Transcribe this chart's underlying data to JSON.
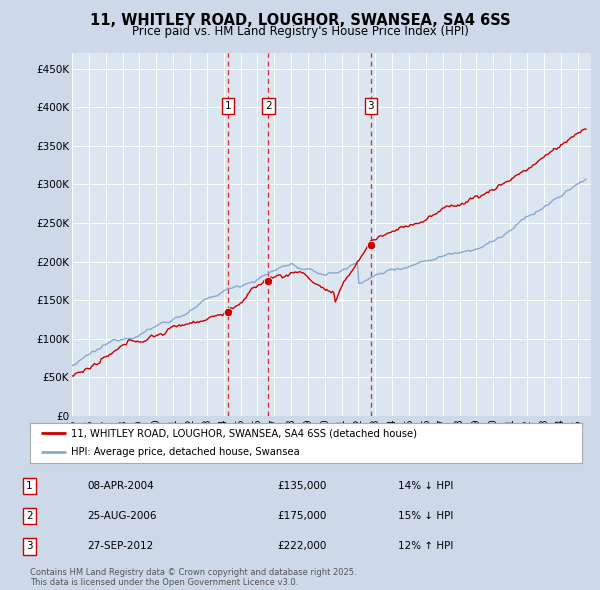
{
  "title": "11, WHITLEY ROAD, LOUGHOR, SWANSEA, SA4 6SS",
  "subtitle": "Price paid vs. HM Land Registry's House Price Index (HPI)",
  "background_color": "#cdd9e8",
  "plot_bg_color": "#dce6f1",
  "ylim": [
    0,
    470000
  ],
  "yticks": [
    0,
    50000,
    100000,
    150000,
    200000,
    250000,
    300000,
    350000,
    400000,
    450000
  ],
  "ytick_labels": [
    "£0",
    "£50K",
    "£100K",
    "£150K",
    "£200K",
    "£250K",
    "£300K",
    "£350K",
    "£400K",
    "£450K"
  ],
  "xlim_start": 1995.0,
  "xlim_end": 2025.8,
  "transactions": [
    {
      "num": 1,
      "date_num": 2004.27,
      "price": 135000,
      "date_str": "08-APR-2004",
      "amount_str": "£135,000",
      "pct": "14%",
      "dir": "↓"
    },
    {
      "num": 2,
      "date_num": 2006.65,
      "price": 175000,
      "date_str": "25-AUG-2006",
      "amount_str": "£175,000",
      "pct": "15%",
      "dir": "↓"
    },
    {
      "num": 3,
      "date_num": 2012.74,
      "price": 222000,
      "date_str": "27-SEP-2012",
      "amount_str": "£222,000",
      "pct": "12%",
      "dir": "↑"
    }
  ],
  "line_color_red": "#cc0000",
  "line_color_blue": "#88aacc",
  "legend_label_red": "11, WHITLEY ROAD, LOUGHOR, SWANSEA, SA4 6SS (detached house)",
  "legend_label_blue": "HPI: Average price, detached house, Swansea",
  "footer": "Contains HM Land Registry data © Crown copyright and database right 2025.\nThis data is licensed under the Open Government Licence v3.0."
}
